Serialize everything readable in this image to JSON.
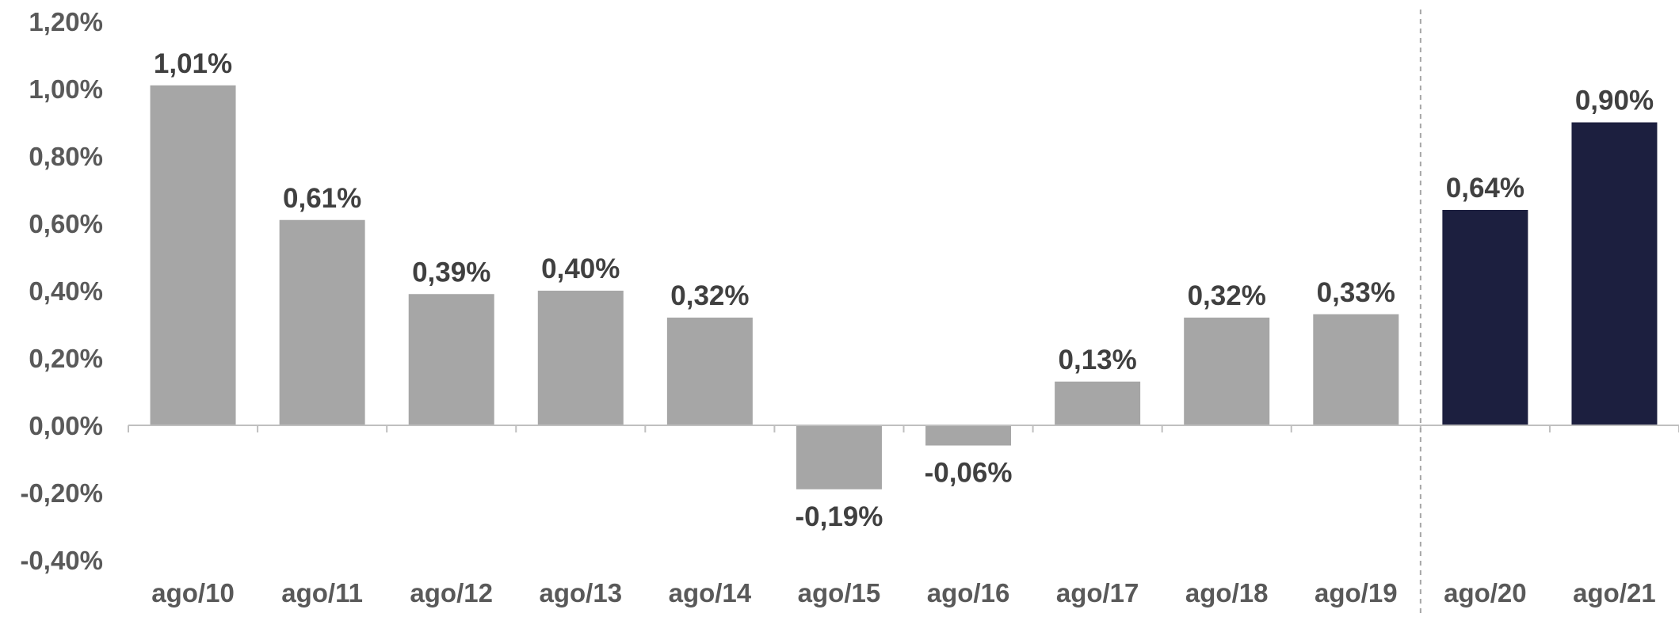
{
  "chart_data": {
    "type": "bar",
    "title": "",
    "xlabel": "",
    "ylabel": "",
    "categories": [
      "ago/10",
      "ago/11",
      "ago/12",
      "ago/13",
      "ago/14",
      "ago/15",
      "ago/16",
      "ago/17",
      "ago/18",
      "ago/19",
      "ago/20",
      "ago/21"
    ],
    "values": [
      1.01,
      0.61,
      0.39,
      0.4,
      0.32,
      -0.19,
      -0.06,
      0.13,
      0.32,
      0.33,
      0.64,
      0.9
    ],
    "data_labels": [
      "1,01%",
      "0,61%",
      "0,39%",
      "0,40%",
      "0,32%",
      "-0,19%",
      "-0,06%",
      "0,13%",
      "0,32%",
      "0,33%",
      "0,64%",
      "0,90%"
    ],
    "ylim": [
      -0.4,
      1.2
    ],
    "yticks": [
      1.2,
      1.0,
      0.8,
      0.6,
      0.4,
      0.2,
      0.0,
      -0.2,
      -0.4
    ],
    "ytick_labels": [
      "1,20%",
      "1,00%",
      "0,80%",
      "0,60%",
      "0,40%",
      "0,20%",
      "0,00%",
      "-0,20%",
      "-0,40%"
    ],
    "grid": false,
    "legend": "none",
    "colors": {
      "historical": "#a6a6a6",
      "highlight": "#1c1f3f"
    },
    "highlighted_categories": [
      "ago/20",
      "ago/21"
    ],
    "separator_after_category": "ago/19"
  }
}
